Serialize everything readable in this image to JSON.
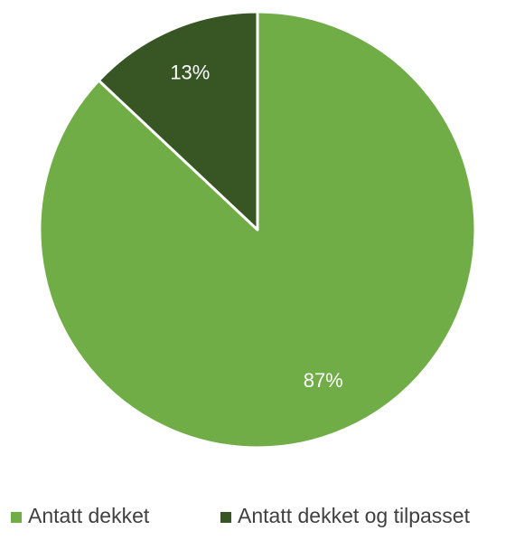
{
  "chart_data": {
    "type": "pie",
    "slices": [
      {
        "name": "Antatt dekket",
        "value": 87,
        "label": "87%",
        "color": "#70AD47"
      },
      {
        "name": "Antatt dekket og tilpasset",
        "value": 13,
        "label": "13%",
        "color": "#375623"
      }
    ],
    "start_angle_deg": 0,
    "direction": "clockwise",
    "legend_position": "bottom",
    "slice_border_color": "#FFFFFF"
  }
}
